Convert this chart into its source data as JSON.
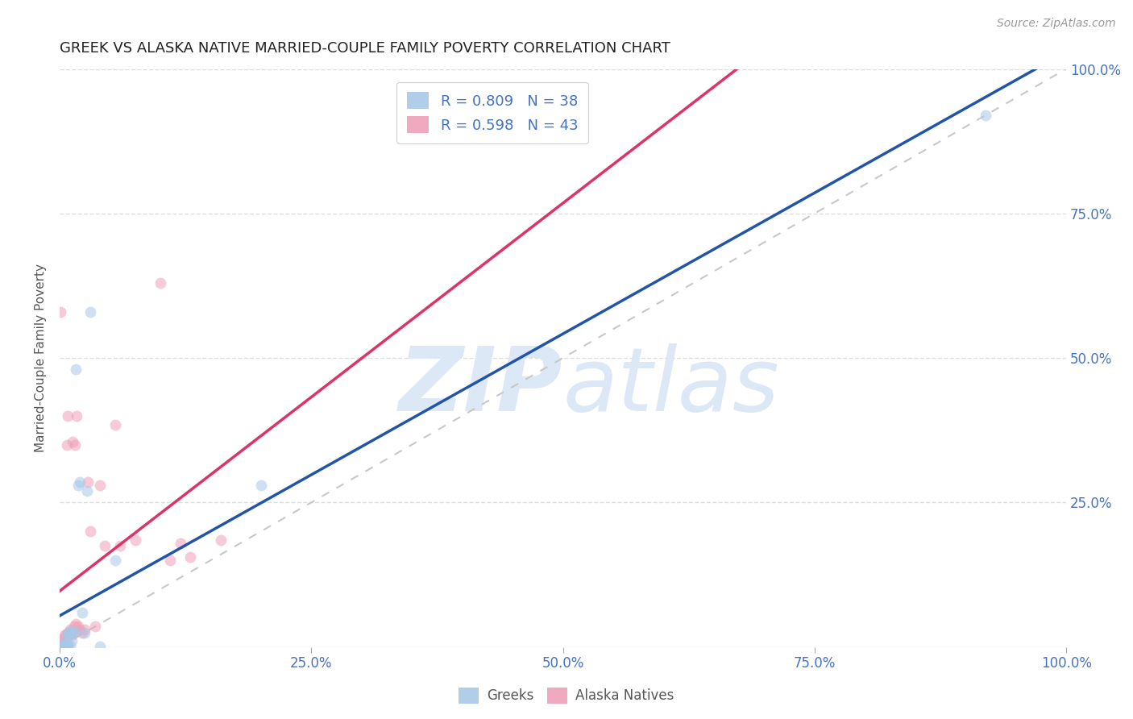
{
  "title": "GREEK VS ALASKA NATIVE MARRIED-COUPLE FAMILY POVERTY CORRELATION CHART",
  "source": "Source: ZipAtlas.com",
  "ylabel": "Married-Couple Family Poverty",
  "r_greek": 0.809,
  "n_greek": 38,
  "r_alaska": 0.598,
  "n_alaska": 43,
  "greek_color": "#a8c8e8",
  "alaska_color": "#f0a0b8",
  "greek_line_color": "#2255aa",
  "alaska_line_color": "#dd3366",
  "ref_line_color": "#c8c8c8",
  "title_color": "#222222",
  "axis_label_color": "#555555",
  "tick_color": "#4472c4",
  "legend_text_color": "#4472c4",
  "watermark_color": "#dce8f5",
  "greek_scatter_x": [
    0.001,
    0.001,
    0.002,
    0.002,
    0.003,
    0.003,
    0.003,
    0.004,
    0.004,
    0.005,
    0.005,
    0.005,
    0.006,
    0.006,
    0.007,
    0.007,
    0.007,
    0.008,
    0.008,
    0.009,
    0.009,
    0.01,
    0.01,
    0.011,
    0.012,
    0.013,
    0.015,
    0.016,
    0.018,
    0.02,
    0.022,
    0.025,
    0.027,
    0.03,
    0.04,
    0.055,
    0.2,
    0.92
  ],
  "greek_scatter_y": [
    0.005,
    0.003,
    0.001,
    0.004,
    0.001,
    0.002,
    0.005,
    0.002,
    0.003,
    0.001,
    0.002,
    0.004,
    0.001,
    0.003,
    0.001,
    0.003,
    0.022,
    0.002,
    0.004,
    0.022,
    0.025,
    0.002,
    0.027,
    0.025,
    0.01,
    0.025,
    0.028,
    0.48,
    0.28,
    0.285,
    0.06,
    0.025,
    0.27,
    0.58,
    0.001,
    0.15,
    0.28,
    0.92
  ],
  "alaska_scatter_x": [
    0.001,
    0.001,
    0.002,
    0.002,
    0.003,
    0.003,
    0.003,
    0.004,
    0.004,
    0.005,
    0.005,
    0.006,
    0.006,
    0.007,
    0.007,
    0.008,
    0.008,
    0.009,
    0.01,
    0.011,
    0.012,
    0.013,
    0.014,
    0.015,
    0.016,
    0.017,
    0.018,
    0.02,
    0.022,
    0.025,
    0.028,
    0.03,
    0.035,
    0.04,
    0.045,
    0.055,
    0.06,
    0.075,
    0.1,
    0.11,
    0.12,
    0.13,
    0.16
  ],
  "alaska_scatter_y": [
    0.58,
    0.003,
    0.001,
    0.005,
    0.002,
    0.01,
    0.003,
    0.001,
    0.015,
    0.005,
    0.02,
    0.002,
    0.022,
    0.001,
    0.35,
    0.025,
    0.4,
    0.02,
    0.03,
    0.025,
    0.02,
    0.355,
    0.035,
    0.35,
    0.04,
    0.4,
    0.035,
    0.03,
    0.025,
    0.03,
    0.285,
    0.2,
    0.035,
    0.28,
    0.175,
    0.385,
    0.175,
    0.185,
    0.63,
    0.15,
    0.18,
    0.155,
    0.185
  ],
  "xlim": [
    0.0,
    1.0
  ],
  "ylim": [
    0.0,
    1.0
  ],
  "xticks": [
    0.0,
    0.25,
    0.5,
    0.75,
    1.0
  ],
  "yticks": [
    0.0,
    0.25,
    0.5,
    0.75,
    1.0
  ],
  "xtick_labels": [
    "0.0%",
    "25.0%",
    "50.0%",
    "75.0%",
    "100.0%"
  ],
  "ytick_labels_right": [
    "",
    "25.0%",
    "50.0%",
    "75.0%",
    "100.0%"
  ],
  "grid_color": "#dddddd",
  "background_color": "#ffffff",
  "legend_fontsize": 13,
  "title_fontsize": 13,
  "marker_size": 100,
  "marker_alpha": 0.55
}
